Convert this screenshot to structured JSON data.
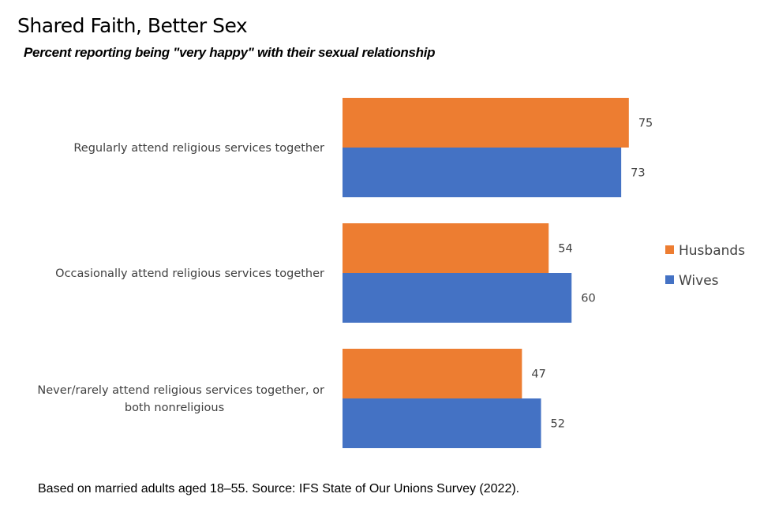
{
  "title": "Shared Faith, Better Sex",
  "subtitle": "Percent reporting being \"very happy\" with their sexual relationship",
  "footnote": "Based on married adults aged 18–55. Source: IFS State of Our Unions Survey (2022).",
  "chart_data": {
    "type": "bar",
    "orientation": "horizontal",
    "categories": [
      [
        "Regularly attend religious services together"
      ],
      [
        "Occasionally attend religious services together"
      ],
      [
        "Never/rarely attend religious services together, or",
        "both nonreligious"
      ]
    ],
    "series": [
      {
        "name": "Husbands",
        "color": "#ED7D31",
        "values": [
          75,
          54,
          47
        ]
      },
      {
        "name": "Wives",
        "color": "#4472C4",
        "values": [
          73,
          60,
          52
        ]
      }
    ],
    "xlim": [
      0,
      80
    ],
    "grid": false,
    "legend_position": "right"
  }
}
